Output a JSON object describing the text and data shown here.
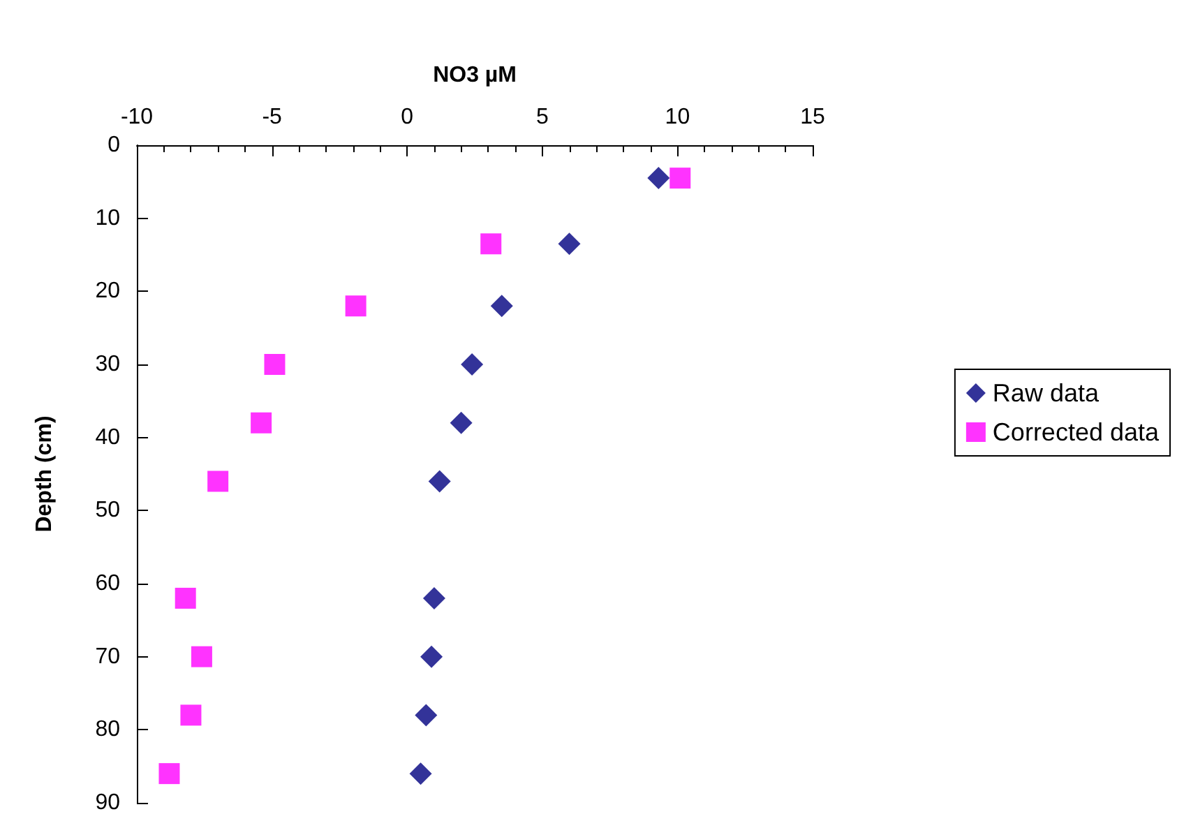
{
  "chart_data": {
    "type": "scatter",
    "xlabel": "NO3 µM",
    "ylabel": "Depth (cm)",
    "xlim": [
      -10,
      15
    ],
    "xticks": [
      -10,
      -5,
      0,
      5,
      10,
      15
    ],
    "ylim": [
      90,
      0
    ],
    "yticks": [
      0,
      10,
      20,
      30,
      40,
      50,
      60,
      70,
      80,
      90
    ],
    "grid": false,
    "legend": "right",
    "series": [
      {
        "name": "Raw data",
        "color": "#000080",
        "marker": "diamond",
        "x": [
          9.3,
          6.0,
          3.5,
          2.4,
          2.0,
          1.2,
          1.0,
          0.9,
          0.7,
          0.5
        ],
        "values": [
          4.5,
          13.5,
          22,
          30,
          38,
          46,
          62,
          70,
          78,
          86
        ]
      },
      {
        "name": "Corrected data",
        "color": "#ff00ff",
        "marker": "square",
        "x": [
          10.1,
          3.1,
          -1.9,
          -4.9,
          -5.4,
          -7.0,
          -8.2,
          -7.6,
          -8.0,
          -8.8
        ],
        "values": [
          4.5,
          13.5,
          22,
          30,
          38,
          46,
          62,
          70,
          78,
          86
        ]
      }
    ]
  }
}
